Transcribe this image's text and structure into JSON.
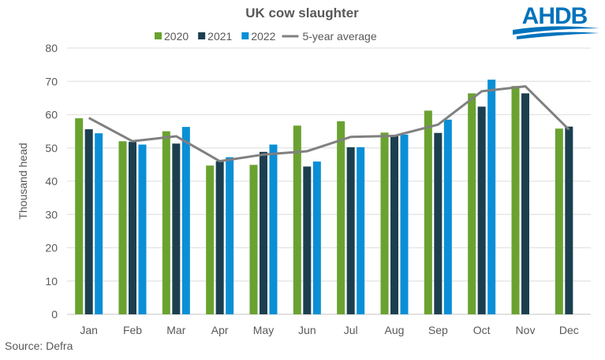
{
  "brand": {
    "logo_text": "AHDB",
    "logo_color": "#0072bc"
  },
  "source": "Source: Defra",
  "chart_data": {
    "type": "bar",
    "title": "UK cow slaughter",
    "xlabel": "",
    "ylabel": "Thousand head",
    "ylim": [
      0,
      80
    ],
    "yticks": [
      0,
      10,
      20,
      30,
      40,
      50,
      60,
      70,
      80
    ],
    "grid": true,
    "legend_position": "top",
    "categories": [
      "Jan",
      "Feb",
      "Mar",
      "Apr",
      "May",
      "Jun",
      "Jul",
      "Aug",
      "Sep",
      "Oct",
      "Nov",
      "Dec"
    ],
    "series": [
      {
        "name": "2020",
        "type": "bar",
        "color": "#6aa230",
        "values": [
          58.9,
          52.0,
          55.0,
          44.7,
          44.9,
          56.7,
          58.0,
          54.6,
          61.2,
          66.4,
          68.6,
          55.8
        ]
      },
      {
        "name": "2021",
        "type": "bar",
        "color": "#1c3f50",
        "values": [
          55.6,
          51.8,
          51.3,
          46.0,
          48.8,
          44.4,
          50.2,
          53.5,
          54.5,
          62.4,
          66.4,
          56.4
        ]
      },
      {
        "name": "2022",
        "type": "bar",
        "color": "#0a8fd6",
        "values": [
          54.4,
          51.0,
          56.3,
          47.2,
          51.0,
          45.9,
          50.2,
          54.0,
          58.5,
          70.5,
          null,
          null
        ]
      },
      {
        "name": "5-year average",
        "type": "line",
        "color": "#808080",
        "values": [
          59.0,
          52.0,
          53.5,
          46.0,
          48.0,
          49.0,
          53.3,
          53.6,
          57.0,
          67.0,
          68.5,
          55.5
        ]
      }
    ]
  }
}
